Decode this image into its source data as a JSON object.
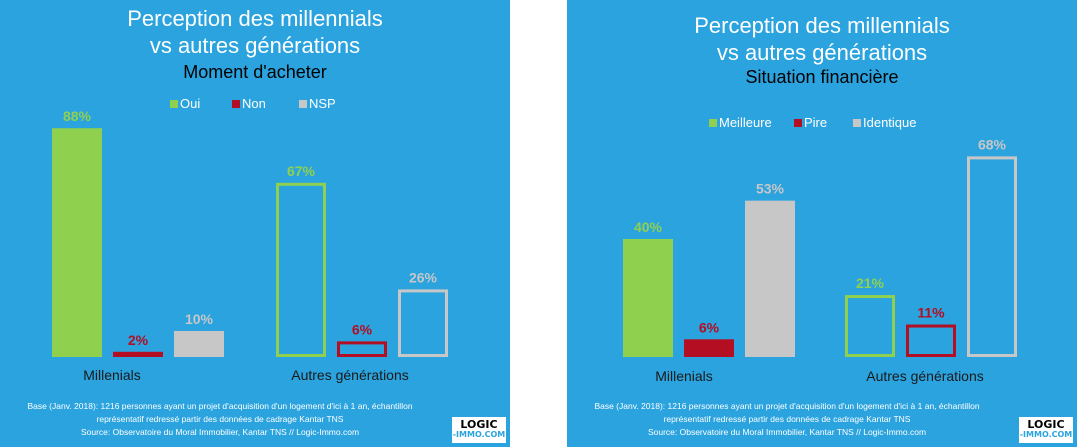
{
  "colors": {
    "background": "#2aa3df",
    "green": "#8fd14f",
    "red": "#b30e22",
    "grey": "#c7c7c7",
    "text": "#ffffff"
  },
  "logo": {
    "line1": "LOGIC",
    "line2": "-IMMO.COM"
  },
  "chart_data": [
    {
      "type": "bar",
      "title_line1": "Perception des millennials",
      "title_line2": "vs autres générations",
      "subtitle": "Moment d'acheter",
      "legend": [
        "Oui",
        "Non",
        "NSP"
      ],
      "legend_position": "top-right",
      "categories": [
        "Millenials",
        "Autres générations"
      ],
      "series": [
        {
          "name": "Oui",
          "values": [
            88,
            67
          ],
          "color": "#8fd14f"
        },
        {
          "name": "Non",
          "values": [
            2,
            6
          ],
          "color": "#b30e22"
        },
        {
          "name": "NSP",
          "values": [
            10,
            26
          ],
          "color": "#c7c7c7"
        }
      ],
      "data_labels": [
        [
          "88%",
          "2%",
          "10%"
        ],
        [
          "67%",
          "6%",
          "26%"
        ]
      ],
      "category_styles": [
        "filled",
        "outline"
      ],
      "ylim": [
        0,
        100
      ],
      "grid": false,
      "footnote": [
        "Base (Janv. 2018): 1216 personnes ayant un projet d'acquisition d'un logement d'ici à 1 an, échantillon",
        "représentatif redressé partir des données de cadrage Kantar TNS",
        "Source: Observatoire du Moral Immobilier, Kantar TNS // Logic-Immo.com"
      ]
    },
    {
      "type": "bar",
      "title_line1": "Perception des millennials",
      "title_line2": "vs autres générations",
      "subtitle": "Situation financière",
      "legend": [
        "Meilleure",
        "Pire",
        "Identique"
      ],
      "legend_position": "top",
      "categories": [
        "Millenials",
        "Autres générations"
      ],
      "series": [
        {
          "name": "Meilleure",
          "values": [
            40,
            21
          ],
          "color": "#8fd14f"
        },
        {
          "name": "Pire",
          "values": [
            6,
            11
          ],
          "color": "#b30e22"
        },
        {
          "name": "Identique",
          "values": [
            53,
            68
          ],
          "color": "#c7c7c7"
        }
      ],
      "data_labels": [
        [
          "40%",
          "6%",
          "53%"
        ],
        [
          "21%",
          "11%",
          "68%"
        ]
      ],
      "category_styles": [
        "filled",
        "outline"
      ],
      "ylim": [
        0,
        100
      ],
      "grid": false,
      "footnote": [
        "Base (Janv. 2018): 1216 personnes ayant un projet d'acquisition d'un logement d'ici à 1 an, échantillon",
        "représentatif redressé partir des données de cadrage Kantar TNS",
        "Source: Observatoire du Moral Immobilier, Kantar TNS // Logic-Immo.com"
      ]
    }
  ]
}
